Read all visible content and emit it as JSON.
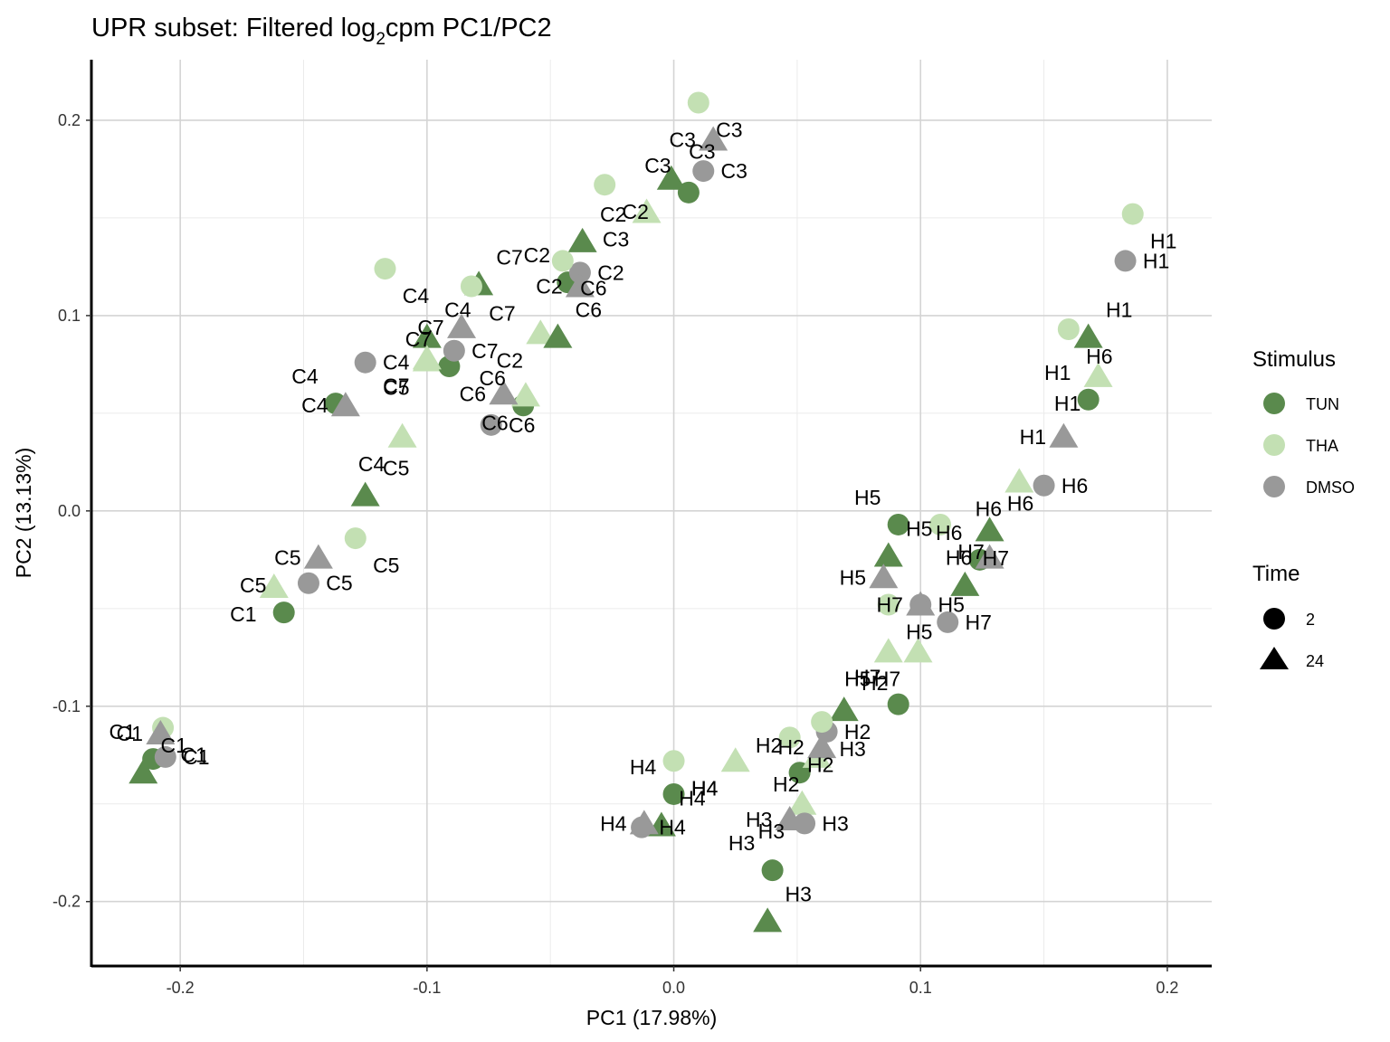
{
  "chart_data": {
    "type": "scatter",
    "title": "UPR subset: Filtered log",
    "title_sub": "2",
    "title_end": "cpm PC1/PC2",
    "xlabel": "PC1 (17.98%)",
    "ylabel": "PC2 (13.13%)",
    "xlim": [
      -0.236,
      0.218
    ],
    "ylim": [
      -0.233,
      0.231
    ],
    "xticks": [
      -0.2,
      -0.1,
      0.0,
      0.1,
      0.2
    ],
    "xtick_labels": [
      "-0.2",
      "-0.1",
      "0.0",
      "0.1",
      "0.2"
    ],
    "yticks": [
      -0.2,
      -0.1,
      0.0,
      0.1,
      0.2
    ],
    "ytick_labels": [
      "-0.2",
      "-0.1",
      "0.0",
      "0.1",
      "0.2"
    ],
    "grid": true,
    "legend_position": "right",
    "stimulus_legend": {
      "title": "Stimulus",
      "items": [
        {
          "label": "TUN",
          "color": "#5a8a4d"
        },
        {
          "label": "THA",
          "color": "#c3e0b3"
        },
        {
          "label": "DMSO",
          "color": "#999999"
        }
      ]
    },
    "time_legend": {
      "title": "Time",
      "items": [
        {
          "label": "2",
          "shape": "circle"
        },
        {
          "label": "24",
          "shape": "triangle"
        }
      ]
    },
    "points": [
      {
        "label": "C1",
        "stimulus": "TUN",
        "time": "2",
        "x": -0.211,
        "y": -0.127
      },
      {
        "label": "C1",
        "stimulus": "TUN",
        "time": "24",
        "x": -0.215,
        "y": -0.134
      },
      {
        "label": "C1",
        "stimulus": "THA",
        "time": "2",
        "x": -0.207,
        "y": -0.111
      },
      {
        "label": "C1",
        "stimulus": "THA",
        "time": "24",
        "x": -0.162,
        "y": -0.039
      },
      {
        "label": "C1",
        "stimulus": "DMSO",
        "time": "2",
        "x": -0.206,
        "y": -0.126
      },
      {
        "label": "C1",
        "stimulus": "DMSO",
        "time": "24",
        "x": -0.208,
        "y": -0.114
      },
      {
        "label": "C2",
        "stimulus": "TUN",
        "time": "2",
        "x": -0.043,
        "y": 0.117
      },
      {
        "label": "C2",
        "stimulus": "TUN",
        "time": "24",
        "x": -0.037,
        "y": 0.138
      },
      {
        "label": "C2",
        "stimulus": "THA",
        "time": "2",
        "x": -0.028,
        "y": 0.167
      },
      {
        "label": "C2",
        "stimulus": "THA",
        "time": "24",
        "x": -0.054,
        "y": 0.091
      },
      {
        "label": "C2",
        "stimulus": "DMSO",
        "time": "2",
        "x": -0.038,
        "y": 0.122
      },
      {
        "label": "C2",
        "stimulus": "DMSO",
        "time": "24",
        "x": -0.038,
        "y": 0.115
      },
      {
        "label": "C3",
        "stimulus": "TUN",
        "time": "2",
        "x": 0.006,
        "y": 0.163
      },
      {
        "label": "C3",
        "stimulus": "TUN",
        "time": "24",
        "x": -0.001,
        "y": 0.17
      },
      {
        "label": "C3",
        "stimulus": "THA",
        "time": "2",
        "x": 0.01,
        "y": 0.209
      },
      {
        "label": "C3",
        "stimulus": "THA",
        "time": "24",
        "x": -0.011,
        "y": 0.153
      },
      {
        "label": "C3",
        "stimulus": "DMSO",
        "time": "2",
        "x": 0.012,
        "y": 0.174
      },
      {
        "label": "C3",
        "stimulus": "DMSO",
        "time": "24",
        "x": 0.016,
        "y": 0.19
      },
      {
        "label": "C4",
        "stimulus": "TUN",
        "time": "2",
        "x": -0.137,
        "y": 0.055
      },
      {
        "label": "C4",
        "stimulus": "TUN",
        "time": "24",
        "x": -0.1,
        "y": 0.089
      },
      {
        "label": "C4",
        "stimulus": "THA",
        "time": "2",
        "x": -0.117,
        "y": 0.124
      },
      {
        "label": "C4",
        "stimulus": "THA",
        "time": "24",
        "x": -0.11,
        "y": 0.038
      },
      {
        "label": "C4",
        "stimulus": "DMSO",
        "time": "2",
        "x": -0.125,
        "y": 0.076
      },
      {
        "label": "C4",
        "stimulus": "DMSO",
        "time": "24",
        "x": -0.133,
        "y": 0.054
      },
      {
        "label": "C5",
        "stimulus": "TUN",
        "time": "2",
        "x": -0.158,
        "y": -0.052
      },
      {
        "label": "C5",
        "stimulus": "TUN",
        "time": "24",
        "x": -0.125,
        "y": 0.008
      },
      {
        "label": "C5",
        "stimulus": "THA",
        "time": "2",
        "x": -0.129,
        "y": -0.014
      },
      {
        "label": "C5",
        "stimulus": "THA",
        "time": "24",
        "x": -0.1,
        "y": 0.077
      },
      {
        "label": "C5",
        "stimulus": "DMSO",
        "time": "2",
        "x": -0.148,
        "y": -0.037
      },
      {
        "label": "C5",
        "stimulus": "DMSO",
        "time": "24",
        "x": -0.144,
        "y": -0.024
      },
      {
        "label": "C6",
        "stimulus": "TUN",
        "time": "2",
        "x": -0.061,
        "y": 0.054
      },
      {
        "label": "C6",
        "stimulus": "TUN",
        "time": "24",
        "x": -0.047,
        "y": 0.089
      },
      {
        "label": "C6",
        "stimulus": "THA",
        "time": "2",
        "x": -0.045,
        "y": 0.128
      },
      {
        "label": "C6",
        "stimulus": "THA",
        "time": "24",
        "x": -0.06,
        "y": 0.059
      },
      {
        "label": "C6",
        "stimulus": "DMSO",
        "time": "2",
        "x": -0.074,
        "y": 0.044
      },
      {
        "label": "C6",
        "stimulus": "DMSO",
        "time": "24",
        "x": -0.069,
        "y": 0.06
      },
      {
        "label": "C7",
        "stimulus": "TUN",
        "time": "2",
        "x": -0.091,
        "y": 0.074
      },
      {
        "label": "C7",
        "stimulus": "TUN",
        "time": "24",
        "x": -0.079,
        "y": 0.116
      },
      {
        "label": "C7",
        "stimulus": "THA",
        "time": "2",
        "x": -0.082,
        "y": 0.115
      },
      {
        "label": "C7",
        "stimulus": "THA",
        "time": "24",
        "x": -0.1,
        "y": 0.078
      },
      {
        "label": "C7",
        "stimulus": "DMSO",
        "time": "2",
        "x": -0.089,
        "y": 0.082
      },
      {
        "label": "C7",
        "stimulus": "DMSO",
        "time": "24",
        "x": -0.086,
        "y": 0.094
      },
      {
        "label": "H1",
        "stimulus": "TUN",
        "time": "2",
        "x": 0.168,
        "y": 0.057
      },
      {
        "label": "H1",
        "stimulus": "TUN",
        "time": "24",
        "x": 0.168,
        "y": 0.089
      },
      {
        "label": "H1",
        "stimulus": "THA",
        "time": "2",
        "x": 0.186,
        "y": 0.152
      },
      {
        "label": "H1",
        "stimulus": "THA",
        "time": "24",
        "x": 0.172,
        "y": 0.069
      },
      {
        "label": "H1",
        "stimulus": "DMSO",
        "time": "2",
        "x": 0.183,
        "y": 0.128
      },
      {
        "label": "H1",
        "stimulus": "DMSO",
        "time": "24",
        "x": 0.158,
        "y": 0.038
      },
      {
        "label": "H2",
        "stimulus": "TUN",
        "time": "2",
        "x": 0.051,
        "y": -0.134
      },
      {
        "label": "H2",
        "stimulus": "TUN",
        "time": "24",
        "x": 0.069,
        "y": -0.102
      },
      {
        "label": "H2",
        "stimulus": "THA",
        "time": "2",
        "x": 0.047,
        "y": -0.116
      },
      {
        "label": "H2",
        "stimulus": "THA",
        "time": "24",
        "x": 0.058,
        "y": -0.126
      },
      {
        "label": "H2",
        "stimulus": "DMSO",
        "time": "2",
        "x": 0.062,
        "y": -0.113
      },
      {
        "label": "H2",
        "stimulus": "DMSO",
        "time": "24",
        "x": 0.06,
        "y": -0.121
      },
      {
        "label": "H3",
        "stimulus": "TUN",
        "time": "2",
        "x": 0.04,
        "y": -0.184
      },
      {
        "label": "H3",
        "stimulus": "TUN",
        "time": "24",
        "x": 0.038,
        "y": -0.21
      },
      {
        "label": "H3",
        "stimulus": "THA",
        "time": "2",
        "x": 0.06,
        "y": -0.108
      },
      {
        "label": "H3",
        "stimulus": "THA",
        "time": "24",
        "x": 0.052,
        "y": -0.15
      },
      {
        "label": "H3",
        "stimulus": "DMSO",
        "time": "2",
        "x": 0.053,
        "y": -0.16
      },
      {
        "label": "H3",
        "stimulus": "DMSO",
        "time": "24",
        "x": 0.047,
        "y": -0.158
      },
      {
        "label": "H4",
        "stimulus": "TUN",
        "time": "2",
        "x": 0.0,
        "y": -0.145
      },
      {
        "label": "H4",
        "stimulus": "TUN",
        "time": "24",
        "x": -0.005,
        "y": -0.161
      },
      {
        "label": "H4",
        "stimulus": "THA",
        "time": "2",
        "x": 0.0,
        "y": -0.128
      },
      {
        "label": "H4",
        "stimulus": "THA",
        "time": "24",
        "x": 0.025,
        "y": -0.128
      },
      {
        "label": "H4",
        "stimulus": "DMSO",
        "time": "2",
        "x": -0.013,
        "y": -0.162
      },
      {
        "label": "H4",
        "stimulus": "DMSO",
        "time": "24",
        "x": -0.012,
        "y": -0.16
      },
      {
        "label": "H5",
        "stimulus": "TUN",
        "time": "2",
        "x": 0.091,
        "y": -0.007
      },
      {
        "label": "H5",
        "stimulus": "TUN",
        "time": "24",
        "x": 0.087,
        "y": -0.023
      },
      {
        "label": "H5",
        "stimulus": "THA",
        "time": "2",
        "x": 0.087,
        "y": -0.048
      },
      {
        "label": "H5",
        "stimulus": "THA",
        "time": "24",
        "x": 0.087,
        "y": -0.072
      },
      {
        "label": "H5",
        "stimulus": "DMSO",
        "time": "2",
        "x": 0.1,
        "y": -0.048
      },
      {
        "label": "H5",
        "stimulus": "DMSO",
        "time": "24",
        "x": 0.085,
        "y": -0.034
      },
      {
        "label": "H6",
        "stimulus": "TUN",
        "time": "2",
        "x": 0.124,
        "y": -0.025
      },
      {
        "label": "H6",
        "stimulus": "TUN",
        "time": "24",
        "x": 0.128,
        "y": -0.01
      },
      {
        "label": "H6",
        "stimulus": "THA",
        "time": "2",
        "x": 0.16,
        "y": 0.093
      },
      {
        "label": "H6",
        "stimulus": "THA",
        "time": "24",
        "x": 0.14,
        "y": 0.015
      },
      {
        "label": "H6",
        "stimulus": "DMSO",
        "time": "2",
        "x": 0.15,
        "y": 0.013
      },
      {
        "label": "H6",
        "stimulus": "DMSO",
        "time": "24",
        "x": 0.128,
        "y": -0.024
      },
      {
        "label": "H7",
        "stimulus": "TUN",
        "time": "2",
        "x": 0.091,
        "y": -0.099
      },
      {
        "label": "H7",
        "stimulus": "TUN",
        "time": "24",
        "x": 0.118,
        "y": -0.038
      },
      {
        "label": "H7",
        "stimulus": "THA",
        "time": "2",
        "x": 0.108,
        "y": -0.007
      },
      {
        "label": "H7",
        "stimulus": "THA",
        "time": "24",
        "x": 0.099,
        "y": -0.072
      },
      {
        "label": "H7",
        "stimulus": "DMSO",
        "time": "2",
        "x": 0.111,
        "y": -0.057
      },
      {
        "label": "H7",
        "stimulus": "DMSO",
        "time": "24",
        "x": 0.1,
        "y": -0.048
      }
    ]
  }
}
